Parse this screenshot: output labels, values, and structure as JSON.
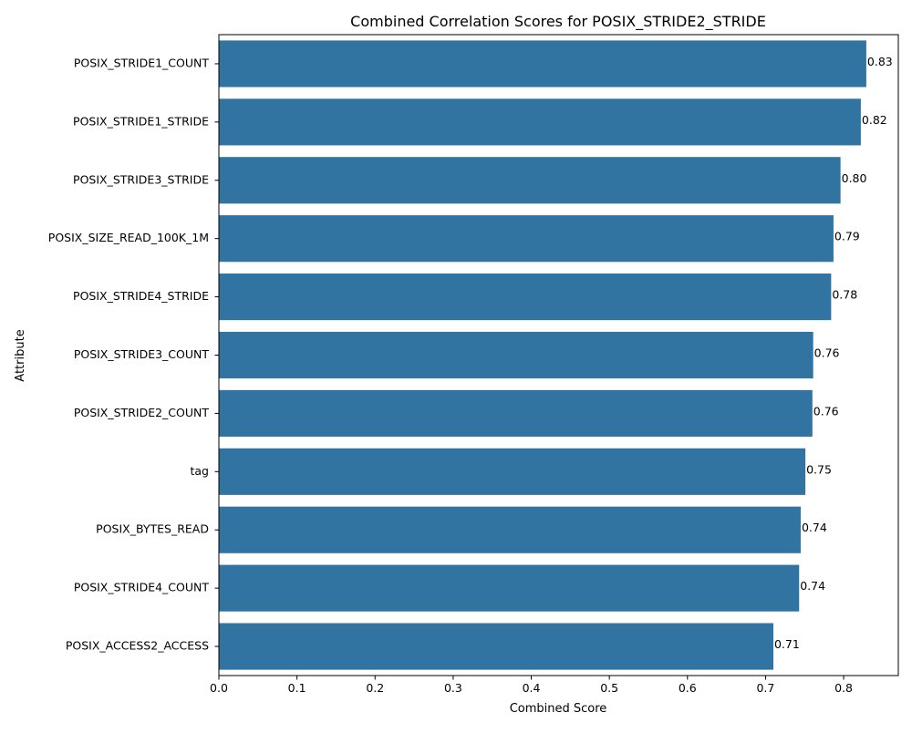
{
  "chart_data": {
    "type": "bar",
    "orientation": "horizontal",
    "title": "Combined Correlation Scores for POSIX_STRIDE2_STRIDE",
    "xlabel": "Combined Score",
    "ylabel": "Attribute",
    "categories": [
      "POSIX_STRIDE1_COUNT",
      "POSIX_STRIDE1_STRIDE",
      "POSIX_STRIDE3_STRIDE",
      "POSIX_SIZE_READ_100K_1M",
      "POSIX_STRIDE4_STRIDE",
      "POSIX_STRIDE3_COUNT",
      "POSIX_STRIDE2_COUNT",
      "tag",
      "POSIX_BYTES_READ",
      "POSIX_STRIDE4_COUNT",
      "POSIX_ACCESS2_ACCESS"
    ],
    "values": [
      0.829,
      0.822,
      0.796,
      0.787,
      0.784,
      0.761,
      0.76,
      0.751,
      0.745,
      0.743,
      0.71
    ],
    "data_labels": [
      "0.83",
      "0.82",
      "0.80",
      "0.79",
      "0.78",
      "0.76",
      "0.76",
      "0.75",
      "0.74",
      "0.74",
      "0.71"
    ],
    "xlim": [
      0,
      0.87
    ],
    "xticks": [
      0.0,
      0.1,
      0.2,
      0.3,
      0.4,
      0.5,
      0.6,
      0.7,
      0.8
    ],
    "xtick_labels": [
      "0.0",
      "0.1",
      "0.2",
      "0.3",
      "0.4",
      "0.5",
      "0.6",
      "0.7",
      "0.8"
    ],
    "bar_color": "#3274a1",
    "grid": false,
    "legend": "none"
  }
}
